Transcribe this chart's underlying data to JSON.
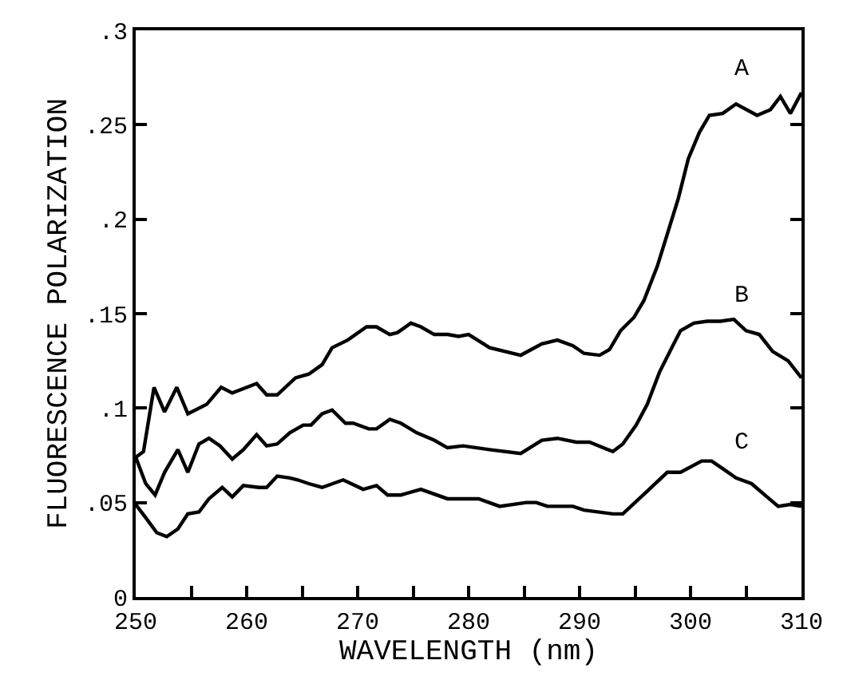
{
  "chart_data": {
    "type": "line",
    "xlabel": "WAVELENGTH (nm)",
    "ylabel": "FLUORESCENCE POLARIZATION",
    "xlim": [
      250,
      310
    ],
    "ylim": [
      0,
      0.3
    ],
    "xticks": [
      250,
      {
        "value": 255,
        "label": null
      },
      260,
      {
        "value": 265,
        "label": null
      },
      270,
      {
        "value": 275,
        "label": null
      },
      280,
      {
        "value": 285,
        "label": null
      },
      290,
      {
        "value": 295,
        "label": null
      },
      300,
      {
        "value": 305,
        "label": null
      },
      310
    ],
    "yticks": [
      0,
      {
        "value": 0.05,
        "label": ".05"
      },
      {
        "value": 0.1,
        "label": ".1"
      },
      {
        "value": 0.15,
        "label": ".15"
      },
      {
        "value": 0.2,
        "label": ".2"
      },
      {
        "value": 0.25,
        "label": ".25"
      },
      {
        "value": 0.3,
        "label": ".3"
      }
    ],
    "marker": "none",
    "line_style": "solid",
    "series": [
      {
        "name": "A",
        "color": "#000000",
        "x": [
          250,
          250.7,
          251.65,
          252.6,
          253.7,
          254.7,
          256.4,
          257.7,
          258.7,
          260.9,
          261.8,
          262.75,
          264.4,
          265.6,
          266.8,
          267.7,
          269.1,
          270.8,
          271.7,
          272.9,
          273.6,
          274.8,
          275.7,
          276.9,
          278.1,
          279.1,
          280,
          281.9,
          284.7,
          286.6,
          288,
          289.4,
          290.4,
          291.8,
          292.7,
          293.7,
          294.9,
          295.8,
          297,
          297.9,
          298.9,
          299.8,
          300.8,
          301.7,
          302.9,
          304.1,
          306,
          307.2,
          308.1,
          309,
          310
        ],
        "values": [
          0.074,
          0.077,
          0.111,
          0.098,
          0.111,
          0.097,
          0.102,
          0.111,
          0.108,
          0.113,
          0.107,
          0.107,
          0.116,
          0.118,
          0.123,
          0.132,
          0.136,
          0.143,
          0.143,
          0.139,
          0.14,
          0.145,
          0.143,
          0.139,
          0.139,
          0.138,
          0.139,
          0.132,
          0.128,
          0.134,
          0.136,
          0.133,
          0.129,
          0.128,
          0.131,
          0.141,
          0.148,
          0.157,
          0.175,
          0.192,
          0.211,
          0.232,
          0.246,
          0.255,
          0.256,
          0.261,
          0.255,
          0.258,
          0.265,
          0.256,
          0.267
        ]
      },
      {
        "name": "B",
        "color": "#000000",
        "x": [
          250,
          250.9,
          251.75,
          252.6,
          253.8,
          254.7,
          255.7,
          256.6,
          257.6,
          258.7,
          259.7,
          260.9,
          261.8,
          262.75,
          263.9,
          265.1,
          265.8,
          266.8,
          267.7,
          268.9,
          269.6,
          271,
          271.7,
          272.9,
          273.9,
          275.3,
          276.9,
          278.1,
          279.5,
          281.9,
          284.7,
          286.6,
          288,
          289.7,
          290.9,
          293,
          293.9,
          295.1,
          296.1,
          297.2,
          298.4,
          299.1,
          300.3,
          301.5,
          302.7,
          303.9,
          305,
          306.2,
          307.4,
          308.8,
          310
        ],
        "values": [
          0.074,
          0.06,
          0.054,
          0.066,
          0.078,
          0.066,
          0.081,
          0.084,
          0.08,
          0.073,
          0.078,
          0.086,
          0.08,
          0.081,
          0.087,
          0.091,
          0.091,
          0.097,
          0.099,
          0.092,
          0.092,
          0.089,
          0.089,
          0.094,
          0.092,
          0.087,
          0.083,
          0.079,
          0.08,
          0.078,
          0.076,
          0.083,
          0.084,
          0.082,
          0.082,
          0.077,
          0.081,
          0.091,
          0.102,
          0.119,
          0.133,
          0.141,
          0.145,
          0.146,
          0.146,
          0.147,
          0.141,
          0.139,
          0.13,
          0.125,
          0.116
        ]
      },
      {
        "name": "C",
        "color": "#000000",
        "x": [
          250,
          250.9,
          251.9,
          252.8,
          253.8,
          254.7,
          255.7,
          256.6,
          257.8,
          258.7,
          259.7,
          261.1,
          261.8,
          262.75,
          263.9,
          264.6,
          265.6,
          266.8,
          268.7,
          270.5,
          271.7,
          272.7,
          273.9,
          275.7,
          278.1,
          280,
          280.9,
          282.8,
          285.2,
          286.1,
          287.1,
          289.4,
          290.4,
          293,
          293.9,
          296.1,
          297.9,
          299.1,
          301,
          301.9,
          302.9,
          304.1,
          305.5,
          306.9,
          307.9,
          309,
          310
        ],
        "values": [
          0.049,
          0.042,
          0.034,
          0.032,
          0.036,
          0.044,
          0.045,
          0.052,
          0.058,
          0.053,
          0.059,
          0.058,
          0.058,
          0.064,
          0.063,
          0.062,
          0.06,
          0.058,
          0.062,
          0.057,
          0.059,
          0.054,
          0.054,
          0.057,
          0.052,
          0.052,
          0.052,
          0.048,
          0.05,
          0.05,
          0.048,
          0.048,
          0.046,
          0.044,
          0.044,
          0.056,
          0.066,
          0.066,
          0.072,
          0.072,
          0.068,
          0.063,
          0.06,
          0.053,
          0.048,
          0.049,
          0.048
        ]
      }
    ]
  }
}
